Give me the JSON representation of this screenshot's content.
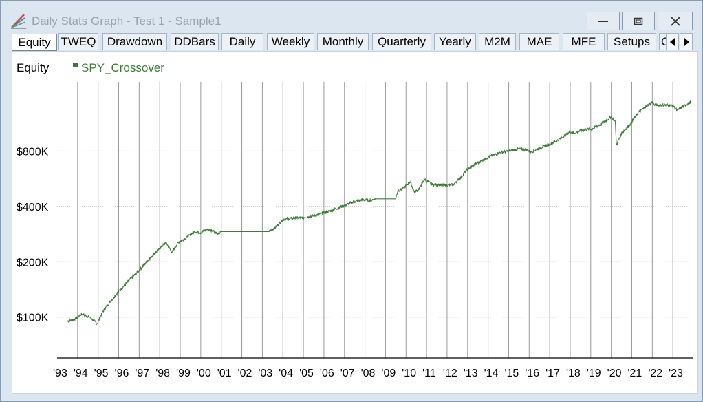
{
  "window": {
    "title": "Daily Stats Graph - Test 1 - Sample1",
    "controls": {
      "minimize": "minimize",
      "maximize": "maximize",
      "close": "close"
    }
  },
  "tabs": [
    {
      "label": "Equity",
      "active": true
    },
    {
      "label": "TWEQ",
      "active": false
    },
    {
      "label": "Drawdown",
      "active": false
    },
    {
      "label": "DDBars",
      "active": false
    },
    {
      "label": "Daily",
      "active": false
    },
    {
      "label": "Weekly",
      "active": false
    },
    {
      "label": "Monthly",
      "active": false
    },
    {
      "label": "Quarterly",
      "active": false
    },
    {
      "label": "Yearly",
      "active": false
    },
    {
      "label": "M2M",
      "active": false
    },
    {
      "label": "MAE",
      "active": false
    },
    {
      "label": "MFE",
      "active": false
    },
    {
      "label": "Setups",
      "active": false
    },
    {
      "label": "G",
      "active": false
    }
  ],
  "colors": {
    "series": "#3f7a3a",
    "gridline": "#9a9a9a",
    "axis": "#000000",
    "window_bg": "#dce6f1"
  },
  "icons": {
    "tab_scroll_left": "triangle-left-icon",
    "tab_scroll_right": "triangle-right-icon",
    "app": "pencil-chart-icon"
  },
  "chart_data": {
    "type": "line",
    "title": "Equity",
    "xlabel": "",
    "ylabel": "",
    "scale": "log",
    "ylim": [
      60000,
      1900000
    ],
    "y_ticks": [
      {
        "value": 100000,
        "label": "$100K"
      },
      {
        "value": 200000,
        "label": "$200K"
      },
      {
        "value": 400000,
        "label": "$400K"
      },
      {
        "value": 800000,
        "label": "$800K"
      }
    ],
    "x_ticks": [
      "'93",
      "'94",
      "'95",
      "'96",
      "'97",
      "'98",
      "'99",
      "'00",
      "'01",
      "'02",
      "'03",
      "'04",
      "'05",
      "'06",
      "'07",
      "'08",
      "'09",
      "'10",
      "'11",
      "'12",
      "'13",
      "'14",
      "'15",
      "'16",
      "'17",
      "'18",
      "'19",
      "'20",
      "'21",
      "'22",
      "'23"
    ],
    "xlim": [
      1993.0,
      2024.0
    ],
    "grid": {
      "vertical": true,
      "horizontal": "dotted"
    },
    "legend": {
      "position": "top-left"
    },
    "series": [
      {
        "name": "SPY_Crossover",
        "x": [
          1993.5,
          1993.9,
          1994.2,
          1994.6,
          1994.95,
          1995.2,
          1995.6,
          1996.0,
          1996.5,
          1997.0,
          1997.5,
          1997.9,
          1998.3,
          1998.6,
          1998.9,
          1999.3,
          1999.7,
          2000.0,
          2000.3,
          2000.6,
          2000.85,
          2001.0,
          2003.3,
          2003.6,
          2004.0,
          2004.5,
          2005.0,
          2005.5,
          2006.0,
          2006.5,
          2007.0,
          2007.5,
          2007.9,
          2008.2,
          2008.5,
          2009.5,
          2009.6,
          2009.9,
          2010.2,
          2010.4,
          2010.6,
          2010.9,
          2011.3,
          2011.6,
          2011.9,
          2012.3,
          2012.7,
          2013.0,
          2013.5,
          2014.0,
          2014.5,
          2015.0,
          2015.5,
          2015.9,
          2016.1,
          2016.5,
          2017.0,
          2017.5,
          2018.0,
          2018.2,
          2018.6,
          2019.0,
          2019.5,
          2020.0,
          2020.2,
          2020.25,
          2020.5,
          2020.9,
          2021.3,
          2021.7,
          2022.0,
          2022.1,
          2022.3,
          2022.6,
          2023.0,
          2023.2,
          2023.5,
          2023.9
        ],
        "values": [
          95000,
          98000,
          104000,
          100000,
          92000,
          106000,
          122000,
          138000,
          158000,
          180000,
          208000,
          230000,
          255000,
          225000,
          255000,
          270000,
          292000,
          288000,
          300000,
          296000,
          282000,
          292000,
          292000,
          305000,
          340000,
          345000,
          348000,
          355000,
          368000,
          385000,
          405000,
          425000,
          435000,
          430000,
          440000,
          440000,
          485000,
          505000,
          545000,
          480000,
          492000,
          560000,
          525000,
          525000,
          520000,
          525000,
          580000,
          640000,
          690000,
          740000,
          780000,
          800000,
          820000,
          810000,
          790000,
          830000,
          870000,
          930000,
          1020000,
          1000000,
          1040000,
          1050000,
          1120000,
          1230000,
          1150000,
          860000,
          1000000,
          1110000,
          1290000,
          1400000,
          1480000,
          1420000,
          1420000,
          1420000,
          1420000,
          1330000,
          1400000,
          1480000
        ]
      }
    ]
  }
}
